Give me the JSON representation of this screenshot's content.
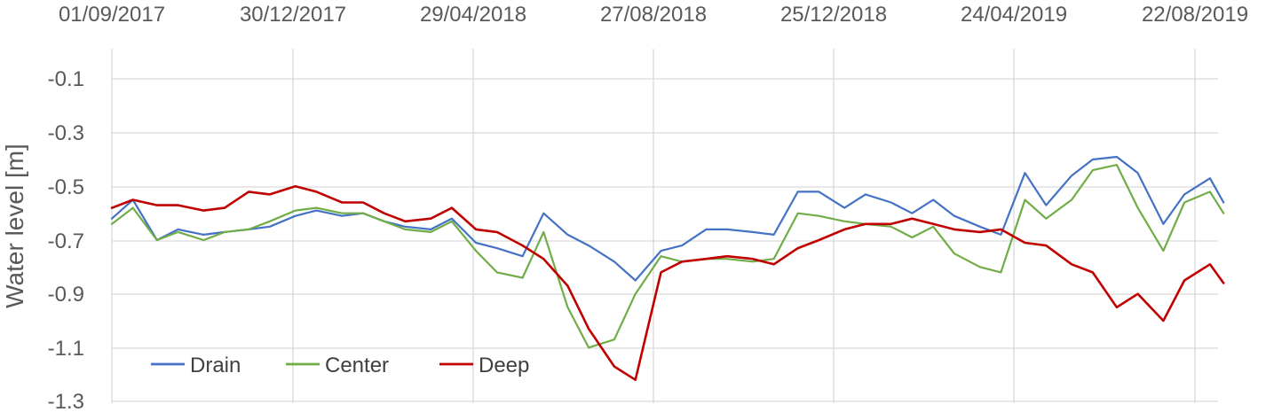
{
  "chart_data": {
    "type": "line",
    "xlabel": "",
    "ylabel": "Water level [m]",
    "x_axis_position": "top",
    "x_ticks": [
      "01/09/2017",
      "30/12/2017",
      "29/04/2018",
      "27/08/2018",
      "25/12/2018",
      "24/04/2019",
      "22/08/2019"
    ],
    "y_ticks": [
      "-0.1",
      "-0.3",
      "-0.5",
      "-0.7",
      "-0.9",
      "-1.1",
      "-1.3"
    ],
    "ylim": [
      -1.3,
      0.0
    ],
    "grid": "vertical at x ticks, horizontal at y ticks",
    "legend_placement": "bottom-left",
    "series": [
      {
        "name": "Drain",
        "color": "#4472c4",
        "x": [
          "2017-09-01",
          "2017-09-15",
          "2017-10-01",
          "2017-10-15",
          "2017-11-01",
          "2017-11-15",
          "2017-12-01",
          "2017-12-15",
          "2018-01-01",
          "2018-01-15",
          "2018-02-01",
          "2018-02-15",
          "2018-03-01",
          "2018-03-15",
          "2018-04-01",
          "2018-04-15",
          "2018-05-01",
          "2018-05-15",
          "2018-06-01",
          "2018-06-15",
          "2018-07-01",
          "2018-07-15",
          "2018-08-01",
          "2018-08-15",
          "2018-09-01",
          "2018-09-15",
          "2018-10-01",
          "2018-10-15",
          "2018-11-01",
          "2018-11-15",
          "2018-12-01",
          "2018-12-15",
          "2019-01-01",
          "2019-01-15",
          "2019-02-01",
          "2019-02-15",
          "2019-03-01",
          "2019-03-15",
          "2019-04-01",
          "2019-04-15",
          "2019-05-01",
          "2019-05-15",
          "2019-06-01",
          "2019-06-15",
          "2019-07-01",
          "2019-07-15",
          "2019-08-01",
          "2019-08-15",
          "2019-09-01",
          "2019-09-10"
        ],
        "values": [
          -0.62,
          -0.55,
          -0.7,
          -0.66,
          -0.68,
          -0.67,
          -0.66,
          -0.65,
          -0.61,
          -0.59,
          -0.61,
          -0.6,
          -0.63,
          -0.65,
          -0.66,
          -0.62,
          -0.71,
          -0.73,
          -0.76,
          -0.6,
          -0.68,
          -0.72,
          -0.78,
          -0.85,
          -0.74,
          -0.72,
          -0.66,
          -0.66,
          -0.67,
          -0.68,
          -0.52,
          -0.52,
          -0.58,
          -0.53,
          -0.56,
          -0.6,
          -0.55,
          -0.61,
          -0.65,
          -0.68,
          -0.45,
          -0.57,
          -0.46,
          -0.4,
          -0.39,
          -0.45,
          -0.64,
          -0.53,
          -0.47,
          -0.56
        ]
      },
      {
        "name": "Center",
        "color": "#70ad47",
        "x": [
          "2017-09-01",
          "2017-09-15",
          "2017-10-01",
          "2017-10-15",
          "2017-11-01",
          "2017-11-15",
          "2017-12-01",
          "2017-12-15",
          "2018-01-01",
          "2018-01-15",
          "2018-02-01",
          "2018-02-15",
          "2018-03-01",
          "2018-03-15",
          "2018-04-01",
          "2018-04-15",
          "2018-05-01",
          "2018-05-15",
          "2018-06-01",
          "2018-06-15",
          "2018-07-01",
          "2018-07-15",
          "2018-08-01",
          "2018-08-15",
          "2018-09-01",
          "2018-09-15",
          "2018-10-01",
          "2018-10-15",
          "2018-11-01",
          "2018-11-15",
          "2018-12-01",
          "2018-12-15",
          "2019-01-01",
          "2019-01-15",
          "2019-02-01",
          "2019-02-15",
          "2019-03-01",
          "2019-03-15",
          "2019-04-01",
          "2019-04-15",
          "2019-05-01",
          "2019-05-15",
          "2019-06-01",
          "2019-06-15",
          "2019-07-01",
          "2019-07-15",
          "2019-08-01",
          "2019-08-15",
          "2019-09-01",
          "2019-09-10"
        ],
        "values": [
          -0.64,
          -0.58,
          -0.7,
          -0.67,
          -0.7,
          -0.67,
          -0.66,
          -0.63,
          -0.59,
          -0.58,
          -0.6,
          -0.6,
          -0.63,
          -0.66,
          -0.67,
          -0.63,
          -0.74,
          -0.82,
          -0.84,
          -0.67,
          -0.95,
          -1.1,
          -1.07,
          -0.9,
          -0.76,
          -0.78,
          -0.77,
          -0.77,
          -0.78,
          -0.77,
          -0.6,
          -0.61,
          -0.63,
          -0.64,
          -0.65,
          -0.69,
          -0.65,
          -0.75,
          -0.8,
          -0.82,
          -0.55,
          -0.62,
          -0.55,
          -0.44,
          -0.42,
          -0.58,
          -0.74,
          -0.56,
          -0.52,
          -0.6
        ]
      },
      {
        "name": "Deep",
        "color": "#c00000",
        "x": [
          "2017-09-01",
          "2017-09-15",
          "2017-10-01",
          "2017-10-15",
          "2017-11-01",
          "2017-11-15",
          "2017-12-01",
          "2017-12-15",
          "2018-01-01",
          "2018-01-15",
          "2018-02-01",
          "2018-02-15",
          "2018-03-01",
          "2018-03-15",
          "2018-04-01",
          "2018-04-15",
          "2018-05-01",
          "2018-05-15",
          "2018-06-01",
          "2018-06-15",
          "2018-07-01",
          "2018-07-15",
          "2018-08-01",
          "2018-08-15",
          "2018-09-01",
          "2018-09-15",
          "2018-10-01",
          "2018-10-15",
          "2018-11-01",
          "2018-11-15",
          "2018-12-01",
          "2018-12-15",
          "2019-01-01",
          "2019-01-15",
          "2019-02-01",
          "2019-02-15",
          "2019-03-01",
          "2019-03-15",
          "2019-04-01",
          "2019-04-15",
          "2019-05-01",
          "2019-05-15",
          "2019-06-01",
          "2019-06-15",
          "2019-07-01",
          "2019-07-15",
          "2019-08-01",
          "2019-08-15",
          "2019-09-01",
          "2019-09-10"
        ],
        "values": [
          -0.58,
          -0.55,
          -0.57,
          -0.57,
          -0.59,
          -0.58,
          -0.52,
          -0.53,
          -0.5,
          -0.52,
          -0.56,
          -0.56,
          -0.6,
          -0.63,
          -0.62,
          -0.58,
          -0.66,
          -0.67,
          -0.72,
          -0.77,
          -0.87,
          -1.03,
          -1.17,
          -1.22,
          -0.82,
          -0.78,
          -0.77,
          -0.76,
          -0.77,
          -0.79,
          -0.73,
          -0.7,
          -0.66,
          -0.64,
          -0.64,
          -0.62,
          -0.64,
          -0.66,
          -0.67,
          -0.66,
          -0.71,
          -0.72,
          -0.79,
          -0.82,
          -0.95,
          -0.9,
          -1.0,
          -0.85,
          -0.79,
          -0.86
        ]
      }
    ]
  }
}
